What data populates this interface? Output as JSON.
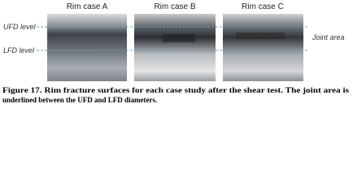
{
  "figure": {
    "panels": [
      {
        "label": "Rim case A"
      },
      {
        "label": "Rim case B"
      },
      {
        "label": "Rim case C"
      }
    ],
    "levels": {
      "upper": "UFD level",
      "lower": "LFD level"
    },
    "annotation": "Joint area",
    "caption": [
      "Figure 17. Rim fracture surfaces for each case study after the shear test. The joint area is",
      "underlined between the UFD and LFD diameters."
    ]
  }
}
